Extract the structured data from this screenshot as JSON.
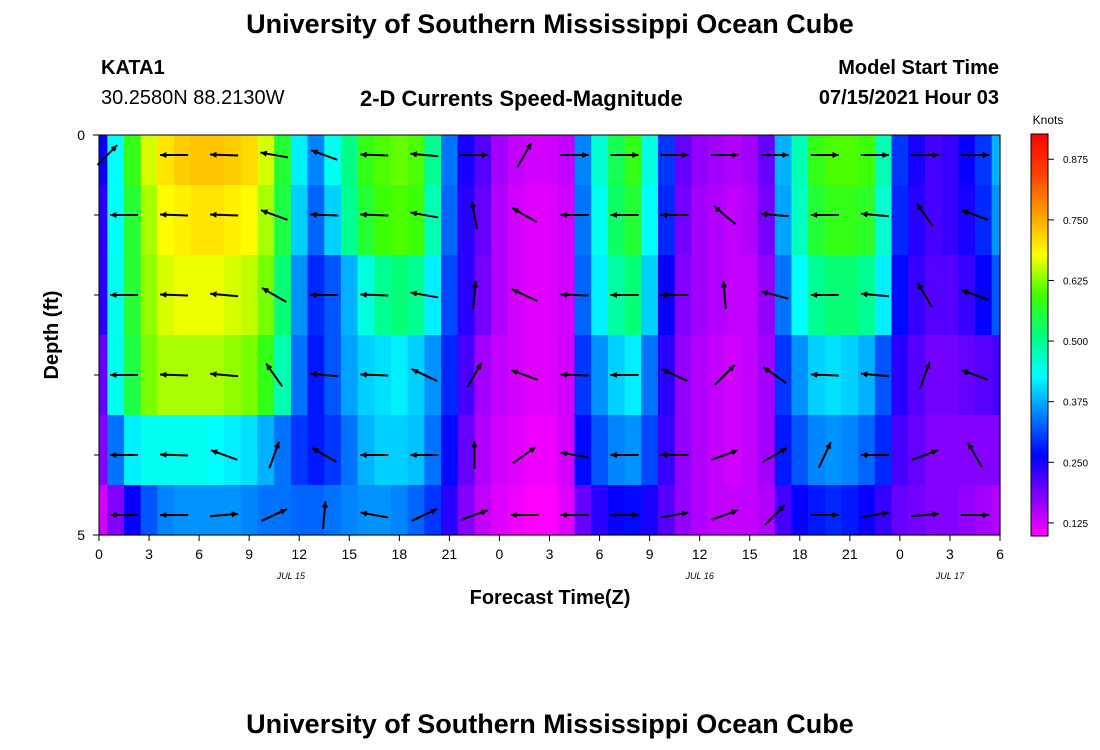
{
  "header": {
    "title": "University of Southern Mississippi Ocean Cube",
    "station": "KATA1",
    "coords": "30.2580N  88.2130W",
    "subtitle": "2-D Currents Speed-Magnitude",
    "model_label": "Model Start Time",
    "model_time": "07/15/2021 Hour 03"
  },
  "footer": {
    "title": "University of Southern Mississippi Ocean Cube"
  },
  "chart_data": {
    "type": "heatmap",
    "title": "2-D Currents Speed-Magnitude",
    "xlabel": "Forecast Time(Z)",
    "ylabel": "Depth (ft)",
    "x_start_hour": 0,
    "x_end_hour": 54,
    "x_ticks": [
      {
        "hour": 0,
        "label": "0"
      },
      {
        "hour": 3,
        "label": "3"
      },
      {
        "hour": 6,
        "label": "6"
      },
      {
        "hour": 9,
        "label": "9"
      },
      {
        "hour": 12,
        "label": "12"
      },
      {
        "hour": 15,
        "label": "15"
      },
      {
        "hour": 18,
        "label": "18"
      },
      {
        "hour": 21,
        "label": "21"
      },
      {
        "hour": 24,
        "label": "0"
      },
      {
        "hour": 27,
        "label": "3"
      },
      {
        "hour": 30,
        "label": "6"
      },
      {
        "hour": 33,
        "label": "9"
      },
      {
        "hour": 36,
        "label": "12"
      },
      {
        "hour": 39,
        "label": "15"
      },
      {
        "hour": 42,
        "label": "18"
      },
      {
        "hour": 45,
        "label": "21"
      },
      {
        "hour": 48,
        "label": "0"
      },
      {
        "hour": 51,
        "label": "3"
      },
      {
        "hour": 54,
        "label": "6"
      }
    ],
    "date_labels": [
      {
        "hour": 11.5,
        "label": "JUL 15"
      },
      {
        "hour": 36,
        "label": "JUL 16"
      },
      {
        "hour": 51,
        "label": "JUL 17"
      }
    ],
    "y_range": [
      0,
      5
    ],
    "y_ticks": [
      {
        "value": 0,
        "label": "0"
      },
      {
        "value": 5,
        "label": "5"
      }
    ],
    "y_minor_ticks": [
      1,
      2,
      3,
      4
    ],
    "depth_levels": [
      0.25,
      1,
      2,
      3,
      4,
      4.75
    ],
    "time_step_hours": 1,
    "speed_profile": [
      [
        0.26,
        0.43,
        0.58,
        0.66,
        0.7,
        0.72,
        0.73,
        0.73,
        0.72,
        0.71,
        0.66,
        0.56,
        0.42,
        0.35,
        0.44,
        0.51,
        0.58,
        0.6,
        0.61,
        0.6,
        0.5,
        0.34,
        0.25,
        0.21,
        0.16,
        0.14,
        0.13,
        0.13,
        0.14,
        0.35,
        0.46,
        0.54,
        0.58,
        0.45,
        0.3,
        0.2,
        0.17,
        0.16,
        0.15,
        0.16,
        0.2,
        0.38,
        0.48,
        0.58,
        0.6,
        0.6,
        0.59,
        0.48,
        0.3,
        0.25,
        0.22,
        0.23,
        0.26,
        0.3,
        0.38
      ],
      [
        0.24,
        0.43,
        0.56,
        0.64,
        0.68,
        0.69,
        0.7,
        0.7,
        0.69,
        0.68,
        0.64,
        0.55,
        0.4,
        0.33,
        0.4,
        0.5,
        0.56,
        0.59,
        0.6,
        0.59,
        0.48,
        0.33,
        0.24,
        0.2,
        0.15,
        0.13,
        0.12,
        0.12,
        0.13,
        0.34,
        0.44,
        0.53,
        0.56,
        0.43,
        0.29,
        0.19,
        0.16,
        0.15,
        0.14,
        0.15,
        0.19,
        0.37,
        0.47,
        0.56,
        0.58,
        0.58,
        0.57,
        0.46,
        0.29,
        0.24,
        0.22,
        0.23,
        0.25,
        0.29,
        0.36
      ],
      [
        0.24,
        0.44,
        0.56,
        0.63,
        0.66,
        0.67,
        0.67,
        0.67,
        0.66,
        0.65,
        0.62,
        0.52,
        0.36,
        0.29,
        0.32,
        0.38,
        0.45,
        0.5,
        0.52,
        0.5,
        0.42,
        0.31,
        0.24,
        0.19,
        0.15,
        0.13,
        0.12,
        0.12,
        0.13,
        0.33,
        0.42,
        0.49,
        0.52,
        0.4,
        0.26,
        0.18,
        0.16,
        0.15,
        0.14,
        0.14,
        0.17,
        0.34,
        0.43,
        0.5,
        0.52,
        0.52,
        0.5,
        0.42,
        0.27,
        0.23,
        0.21,
        0.21,
        0.23,
        0.26,
        0.32
      ],
      [
        0.2,
        0.44,
        0.55,
        0.62,
        0.64,
        0.64,
        0.64,
        0.64,
        0.63,
        0.62,
        0.58,
        0.48,
        0.34,
        0.28,
        0.32,
        0.37,
        0.4,
        0.41,
        0.42,
        0.4,
        0.36,
        0.29,
        0.22,
        0.16,
        0.14,
        0.13,
        0.12,
        0.12,
        0.13,
        0.3,
        0.36,
        0.4,
        0.42,
        0.34,
        0.24,
        0.17,
        0.15,
        0.14,
        0.13,
        0.14,
        0.16,
        0.3,
        0.36,
        0.4,
        0.41,
        0.4,
        0.38,
        0.32,
        0.24,
        0.21,
        0.19,
        0.19,
        0.2,
        0.21,
        0.22
      ],
      [
        0.18,
        0.34,
        0.42,
        0.44,
        0.44,
        0.44,
        0.44,
        0.43,
        0.42,
        0.41,
        0.38,
        0.34,
        0.3,
        0.28,
        0.3,
        0.34,
        0.38,
        0.4,
        0.4,
        0.39,
        0.34,
        0.27,
        0.2,
        0.15,
        0.13,
        0.12,
        0.11,
        0.11,
        0.13,
        0.27,
        0.32,
        0.35,
        0.36,
        0.31,
        0.23,
        0.17,
        0.15,
        0.14,
        0.13,
        0.14,
        0.16,
        0.28,
        0.32,
        0.35,
        0.36,
        0.35,
        0.33,
        0.29,
        0.22,
        0.2,
        0.18,
        0.18,
        0.18,
        0.18,
        0.18
      ],
      [
        0.13,
        0.18,
        0.26,
        0.32,
        0.35,
        0.36,
        0.36,
        0.36,
        0.36,
        0.35,
        0.34,
        0.34,
        0.33,
        0.33,
        0.34,
        0.35,
        0.36,
        0.36,
        0.35,
        0.33,
        0.3,
        0.24,
        0.18,
        0.14,
        0.12,
        0.11,
        0.1,
        0.1,
        0.12,
        0.2,
        0.24,
        0.26,
        0.27,
        0.25,
        0.21,
        0.17,
        0.15,
        0.14,
        0.14,
        0.14,
        0.15,
        0.22,
        0.26,
        0.28,
        0.29,
        0.28,
        0.26,
        0.23,
        0.2,
        0.19,
        0.18,
        0.18,
        0.17,
        0.16,
        0.15
      ]
    ],
    "vector_time_step_hours": 3,
    "vectors": [
      [
        [
          0.5,
          45
        ],
        [
          4.5,
          180
        ],
        [
          7.5,
          178
        ],
        [
          10.5,
          170
        ],
        [
          13.5,
          160
        ],
        [
          16.5,
          178
        ],
        [
          19.5,
          175
        ],
        [
          22.5,
          0
        ],
        [
          25.5,
          60
        ],
        [
          28.5,
          0
        ],
        [
          31.5,
          0
        ],
        [
          34.5,
          0
        ],
        [
          37.5,
          0
        ],
        [
          40.5,
          0
        ],
        [
          43.5,
          0
        ],
        [
          46.5,
          0
        ],
        [
          49.5,
          0
        ],
        [
          52.5,
          0
        ]
      ],
      [
        [
          1.5,
          180
        ],
        [
          4.5,
          178
        ],
        [
          7.5,
          178
        ],
        [
          10.5,
          160
        ],
        [
          13.5,
          178
        ],
        [
          16.5,
          178
        ],
        [
          19.5,
          170
        ],
        [
          22.5,
          100
        ],
        [
          25.5,
          150
        ],
        [
          28.5,
          180
        ],
        [
          31.5,
          180
        ],
        [
          34.5,
          180
        ],
        [
          37.5,
          140
        ],
        [
          40.5,
          175
        ],
        [
          43.5,
          180
        ],
        [
          46.5,
          175
        ],
        [
          49.5,
          125
        ],
        [
          52.5,
          160
        ]
      ],
      [
        [
          1.5,
          180
        ],
        [
          4.5,
          178
        ],
        [
          7.5,
          175
        ],
        [
          10.5,
          150
        ],
        [
          13.5,
          180
        ],
        [
          16.5,
          178
        ],
        [
          19.5,
          170
        ],
        [
          22.5,
          85
        ],
        [
          25.5,
          155
        ],
        [
          28.5,
          178
        ],
        [
          31.5,
          180
        ],
        [
          34.5,
          180
        ],
        [
          37.5,
          95
        ],
        [
          40.5,
          165
        ],
        [
          43.5,
          180
        ],
        [
          46.5,
          175
        ],
        [
          49.5,
          120
        ],
        [
          52.5,
          160
        ]
      ],
      [
        [
          1.5,
          180
        ],
        [
          4.5,
          178
        ],
        [
          7.5,
          175
        ],
        [
          10.5,
          125
        ],
        [
          13.5,
          175
        ],
        [
          16.5,
          178
        ],
        [
          19.5,
          155
        ],
        [
          22.5,
          60
        ],
        [
          25.5,
          160
        ],
        [
          28.5,
          178
        ],
        [
          31.5,
          180
        ],
        [
          34.5,
          155
        ],
        [
          37.5,
          45
        ],
        [
          40.5,
          145
        ],
        [
          43.5,
          178
        ],
        [
          46.5,
          175
        ],
        [
          49.5,
          70
        ],
        [
          52.5,
          160
        ]
      ],
      [
        [
          1.5,
          180
        ],
        [
          4.5,
          178
        ],
        [
          7.5,
          160
        ],
        [
          10.5,
          70
        ],
        [
          13.5,
          150
        ],
        [
          16.5,
          180
        ],
        [
          19.5,
          180
        ],
        [
          22.5,
          90
        ],
        [
          25.5,
          35
        ],
        [
          28.5,
          170
        ],
        [
          31.5,
          180
        ],
        [
          34.5,
          180
        ],
        [
          37.5,
          20
        ],
        [
          40.5,
          30
        ],
        [
          43.5,
          65
        ],
        [
          46.5,
          180
        ],
        [
          49.5,
          20
        ],
        [
          52.5,
          120
        ]
      ],
      [
        [
          1.5,
          180
        ],
        [
          4.5,
          180
        ],
        [
          7.5,
          5
        ],
        [
          10.5,
          25
        ],
        [
          13.5,
          85
        ],
        [
          16.5,
          170
        ],
        [
          19.5,
          25
        ],
        [
          22.5,
          20
        ],
        [
          25.5,
          180
        ],
        [
          28.5,
          180
        ],
        [
          31.5,
          0
        ],
        [
          34.5,
          10
        ],
        [
          37.5,
          20
        ],
        [
          40.5,
          45
        ],
        [
          43.5,
          0
        ],
        [
          46.5,
          10
        ],
        [
          49.5,
          5
        ],
        [
          52.5,
          0
        ]
      ]
    ],
    "colorbar": {
      "unit": "Knots",
      "min": 0.1,
      "max": 0.925,
      "ticks": [
        0.125,
        0.25,
        0.375,
        0.5,
        0.625,
        0.75,
        0.875
      ],
      "tick_labels": [
        "0.125",
        "0.250",
        "0.375",
        "0.500",
        "0.625",
        "0.750",
        "0.875"
      ],
      "colors": [
        "#ff00ff",
        "#8000ff",
        "#0000ff",
        "#0080ff",
        "#00ffff",
        "#00ff80",
        "#40ff00",
        "#ffff00",
        "#ffa000",
        "#ff4000",
        "#ff0000"
      ]
    }
  }
}
